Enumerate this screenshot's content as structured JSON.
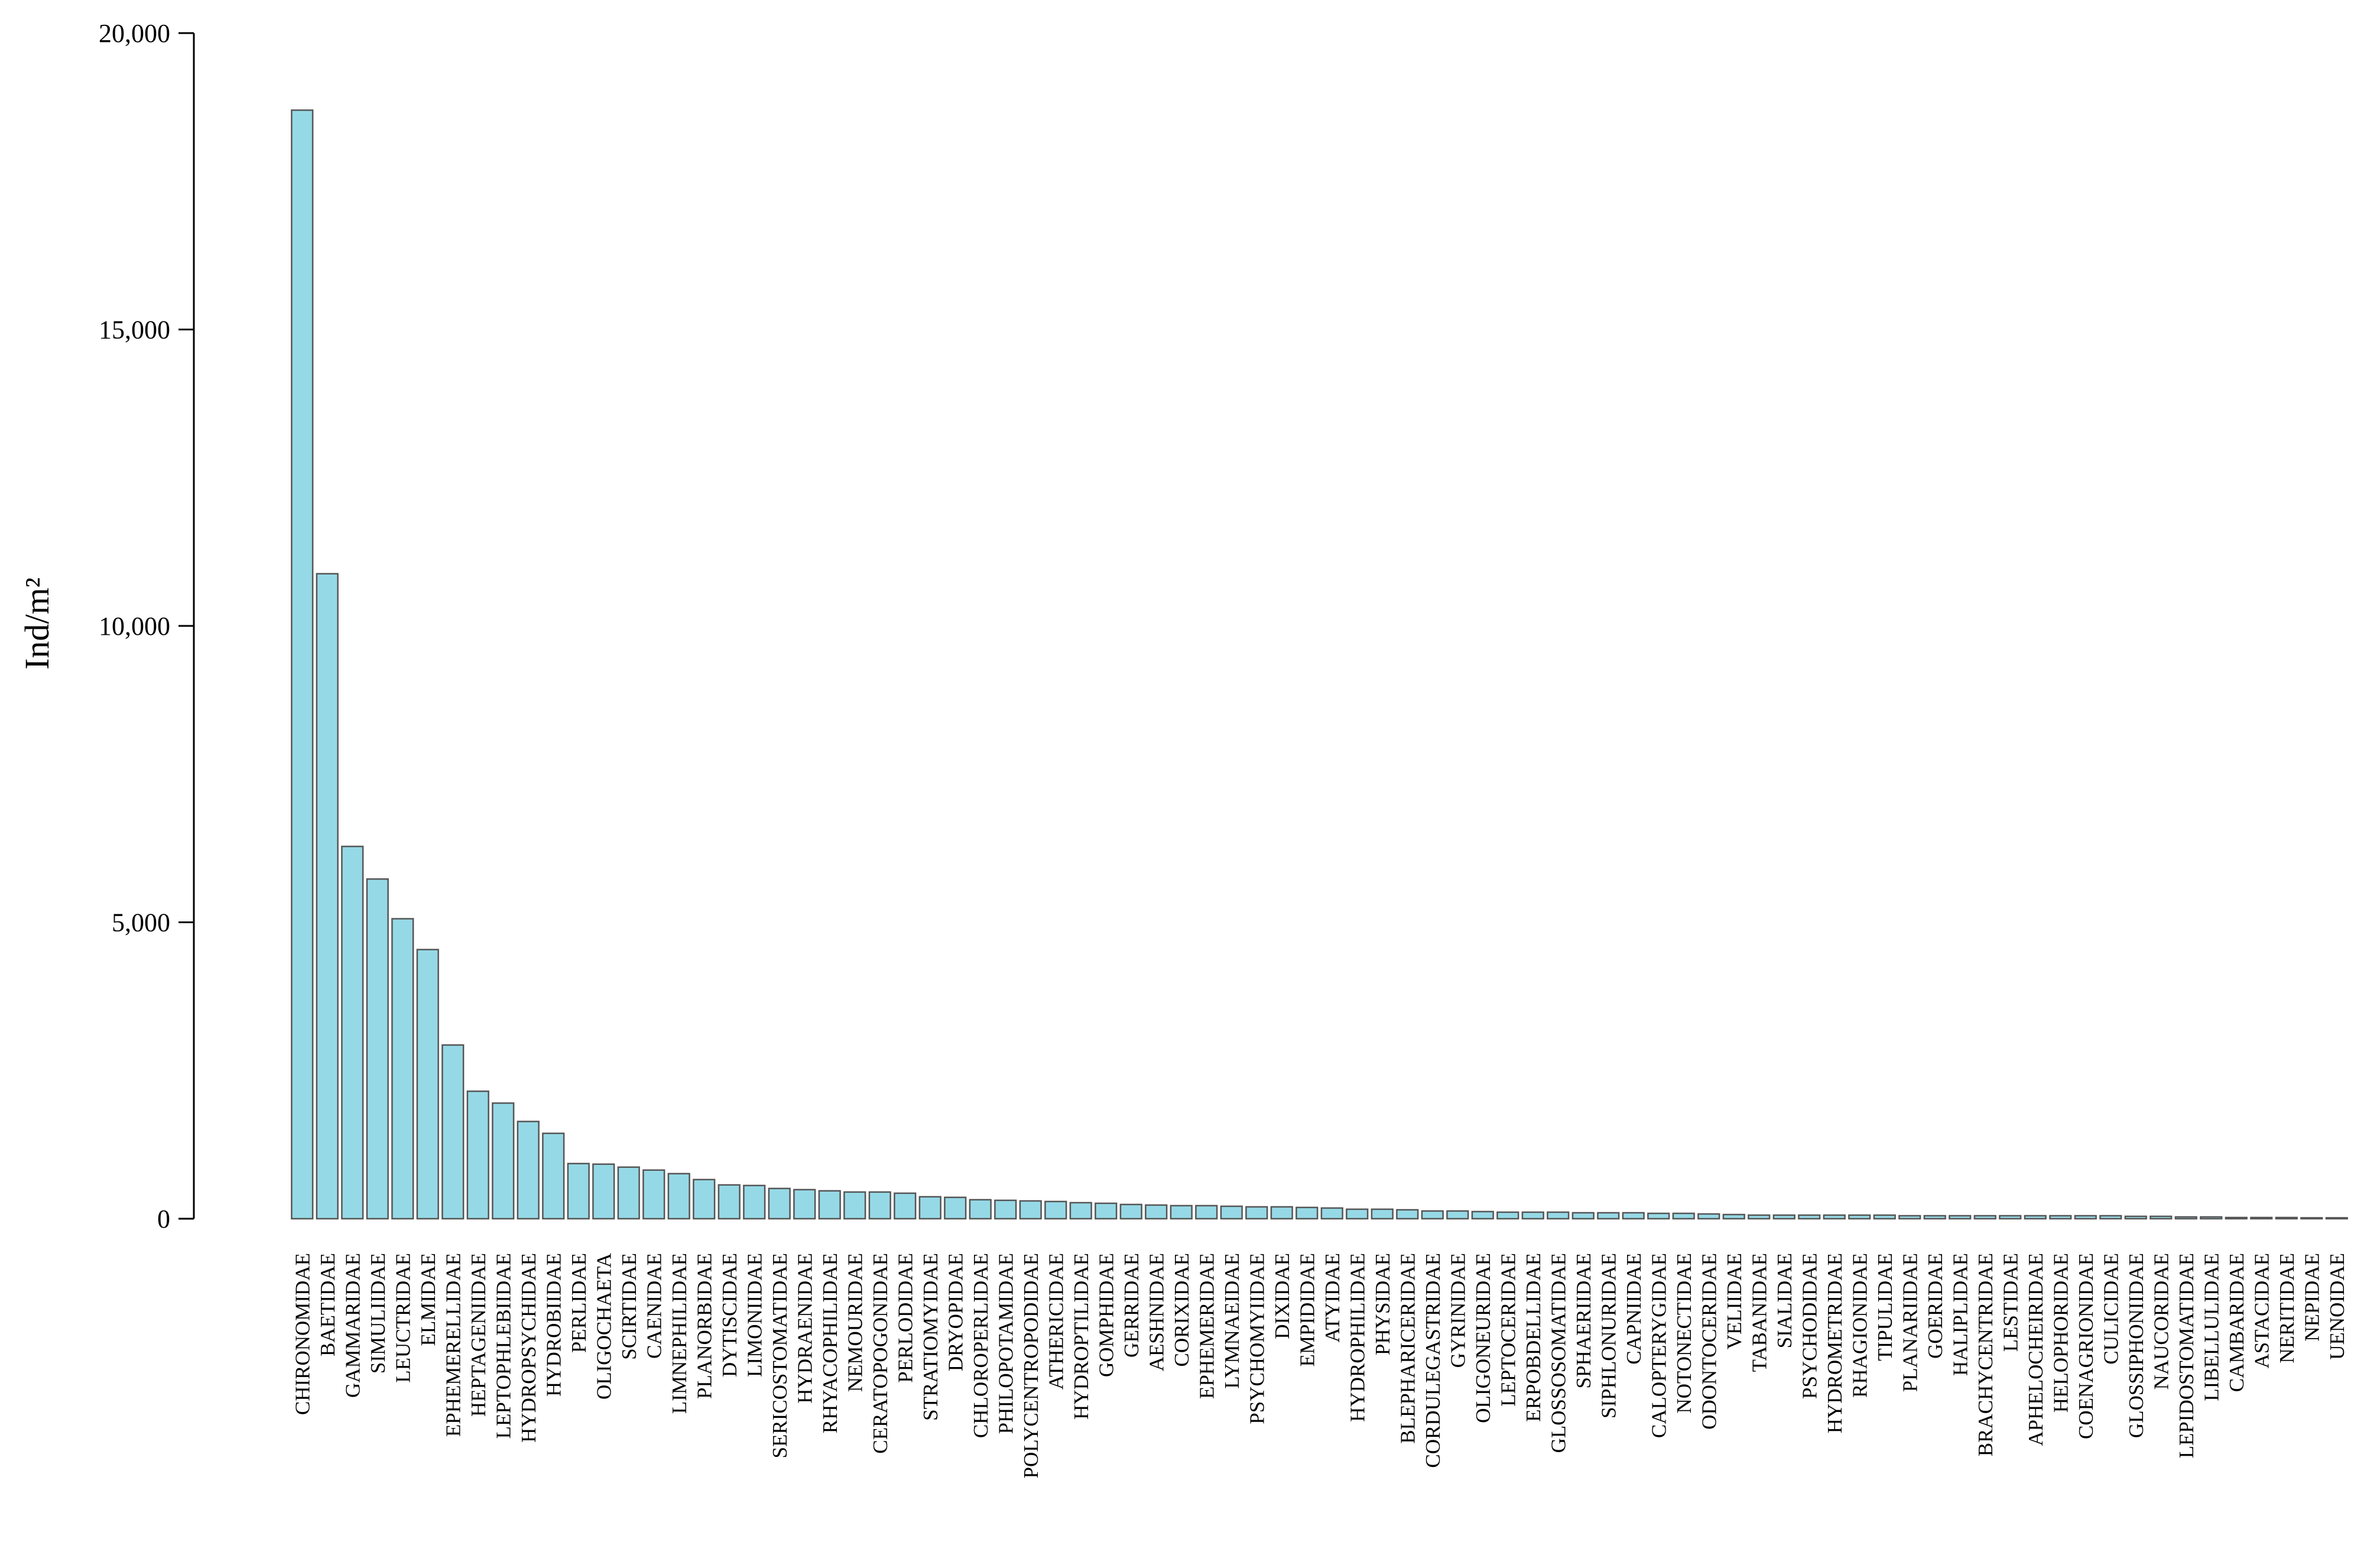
{
  "chart_data": {
    "type": "bar",
    "title": "",
    "xlabel": "",
    "ylabel": "Ind/m²",
    "ylim": [
      0,
      20000
    ],
    "yticks": [
      0,
      5000,
      10000,
      15000,
      20000
    ],
    "ytick_labels": [
      "0",
      "5,000",
      "10,000",
      "15,000",
      "20,000"
    ],
    "grid": false,
    "legend": "none",
    "bar_color": "#96d9e6",
    "bar_edge_color": "#555555",
    "categories": [
      "CHIRONOMIDAE",
      "BAETIDAE",
      "GAMMARIDAE",
      "SIMULIIDAE",
      "LEUCTRIDAE",
      "ELMIDAE",
      "EPHEMERELLIDAE",
      "HEPTAGENIIDAE",
      "LEPTOPHLEBIIDAE",
      "HYDROPSYCHIDAE",
      "HYDROBIIDAE",
      "PERLIDAE",
      "OLIGOCHAETA",
      "SCIRTIDAE",
      "CAENIDAE",
      "LIMNEPHILIDAE",
      "PLANORBIDAE",
      "DYTISCIDAE",
      "LIMONIIDAE",
      "SERICOSTOMATIDAE",
      "HYDRAENIDAE",
      "RHYACOPHILIDAE",
      "NEMOURIDAE",
      "CERATOPOGONIDAE",
      "PERLODIDAE",
      "STRATIOMYIDAE",
      "DRYOPIDAE",
      "CHLOROPERLIDAE",
      "PHILOPOTAMIDAE",
      "POLYCENTROPODIDAE",
      "ATHERICIDAE",
      "HYDROPTILIDAE",
      "GOMPHIDAE",
      "GERRIDAE",
      "AESHNIDAE",
      "CORIXIDAE",
      "EPHEMERIDAE",
      "LYMNAEIDAE",
      "PSYCHOMYIIDAE",
      "DIXIDAE",
      "EMPIDIDAE",
      "ATYIDAE",
      "HYDROPHILIDAE",
      "PHYSIDAE",
      "BLEPHARICERIDAE",
      "CORDULEGASTRIDAE",
      "GYRINIDAE",
      "OLIGONEURIDAE",
      "LEPTOCERIDAE",
      "ERPOBDELLIDAE",
      "GLOSSOSOMATIDAE",
      "SPHAERIIDAE",
      "SIPHLONURIDAE",
      "CAPNIIDAE",
      "CALOPTERYGIDAE",
      "NOTONECTIDAE",
      "ODONTOCERIDAE",
      "VELIIDAE",
      "TABANIDAE",
      "SIALIDAE",
      "PSYCHODIDAE",
      "HYDROMETRIDAE",
      "RHAGIONIDAE",
      "TIPULIDAE",
      "PLANARIIDAE",
      "GOERIDAE",
      "HALIPLIDAE",
      "BRACHYCENTRIDAE",
      "LESTIDAE",
      "APHELOCHEIRIDAE",
      "HELOPHORIDAE",
      "COENAGRIONIDAE",
      "CULICIDAE",
      "GLOSSIPHONIIDAE",
      "NAUCORIDAE",
      "LEPIDOSTOMATIDAE",
      "LIBELLULIDAE",
      "CAMBARIDAE",
      "ASTACIDAE",
      "NERITIDAE",
      "NEPIDAE",
      "UENOIDAE"
    ],
    "values": [
      18700,
      10880,
      6280,
      5730,
      5060,
      4540,
      2930,
      2150,
      1950,
      1640,
      1440,
      930,
      920,
      870,
      820,
      760,
      660,
      570,
      560,
      510,
      490,
      470,
      450,
      450,
      430,
      370,
      360,
      320,
      310,
      300,
      290,
      270,
      260,
      240,
      230,
      220,
      220,
      210,
      200,
      200,
      190,
      180,
      160,
      160,
      150,
      130,
      130,
      120,
      110,
      110,
      110,
      100,
      100,
      100,
      90,
      90,
      80,
      70,
      60,
      60,
      60,
      60,
      60,
      60,
      50,
      50,
      50,
      50,
      50,
      50,
      50,
      50,
      50,
      40,
      40,
      30,
      30,
      20,
      20,
      20,
      10,
      10
    ]
  }
}
